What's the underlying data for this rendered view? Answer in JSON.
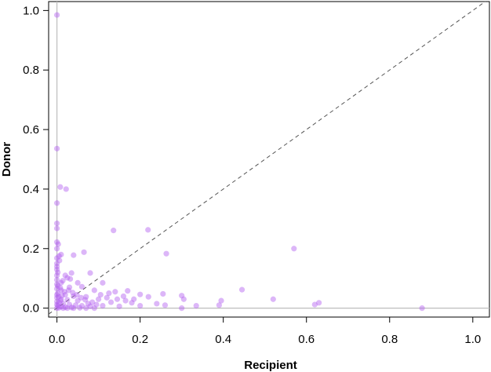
{
  "chart_data": {
    "type": "scatter",
    "title": "",
    "xlabel": "Recipient",
    "ylabel": "Donor",
    "xlim": [
      -0.02,
      1.04
    ],
    "ylim": [
      -0.03,
      1.03
    ],
    "x_ticks": [
      "0.0",
      "0.2",
      "0.4",
      "0.6",
      "0.8",
      "1.0"
    ],
    "y_ticks": [
      "0.0",
      "0.2",
      "0.4",
      "0.6",
      "0.8",
      "1.0"
    ],
    "grid": false,
    "legend": "none",
    "reference_lines": {
      "diagonal_dashed": "y = x",
      "vertical_x0": 0,
      "horizontal_y0": 0
    },
    "colors": {
      "point": "#b15ef0",
      "reference_line": "#bdbdbd",
      "diagonal": "#555555"
    },
    "points": [
      [
        0.0,
        0.985
      ],
      [
        0.0,
        0.536
      ],
      [
        0.008,
        0.407
      ],
      [
        0.022,
        0.4
      ],
      [
        0.0,
        0.353
      ],
      [
        0.0,
        0.285
      ],
      [
        0.0,
        0.268
      ],
      [
        0.136,
        0.261
      ],
      [
        0.219,
        0.263
      ],
      [
        0.0,
        0.222
      ],
      [
        0.003,
        0.215
      ],
      [
        0.0,
        0.2
      ],
      [
        0.57,
        0.2
      ],
      [
        0.263,
        0.183
      ],
      [
        0.01,
        0.18
      ],
      [
        0.005,
        0.175
      ],
      [
        0.0,
        0.168
      ],
      [
        0.065,
        0.188
      ],
      [
        0.04,
        0.178
      ],
      [
        0.0,
        0.15
      ],
      [
        0.0,
        0.13
      ],
      [
        0.002,
        0.12
      ],
      [
        0.0,
        0.11
      ],
      [
        0.025,
        0.102
      ],
      [
        0.032,
        0.098
      ],
      [
        0.08,
        0.118
      ],
      [
        0.035,
        0.118
      ],
      [
        0.0,
        0.095
      ],
      [
        0.01,
        0.085
      ],
      [
        0.05,
        0.085
      ],
      [
        0.11,
        0.085
      ],
      [
        0.002,
        0.075
      ],
      [
        0.0,
        0.065
      ],
      [
        0.03,
        0.07
      ],
      [
        0.06,
        0.072
      ],
      [
        0.01,
        0.06
      ],
      [
        0.09,
        0.06
      ],
      [
        0.14,
        0.055
      ],
      [
        0.17,
        0.058
      ],
      [
        0.2,
        0.046
      ],
      [
        0.445,
        0.062
      ],
      [
        0.3,
        0.042
      ],
      [
        0.255,
        0.048
      ],
      [
        0.22,
        0.038
      ],
      [
        0.16,
        0.04
      ],
      [
        0.12,
        0.035
      ],
      [
        0.002,
        0.05
      ],
      [
        0.02,
        0.045
      ],
      [
        0.04,
        0.04
      ],
      [
        0.07,
        0.038
      ],
      [
        0.1,
        0.03
      ],
      [
        0.0,
        0.035
      ],
      [
        0.01,
        0.03
      ],
      [
        0.025,
        0.028
      ],
      [
        0.05,
        0.025
      ],
      [
        0.085,
        0.02
      ],
      [
        0.13,
        0.02
      ],
      [
        0.18,
        0.018
      ],
      [
        0.24,
        0.015
      ],
      [
        0.305,
        0.03
      ],
      [
        0.395,
        0.025
      ],
      [
        0.52,
        0.03
      ],
      [
        0.63,
        0.018
      ],
      [
        0.62,
        0.012
      ],
      [
        0.0,
        0.022
      ],
      [
        0.005,
        0.018
      ],
      [
        0.015,
        0.015
      ],
      [
        0.03,
        0.012
      ],
      [
        0.045,
        0.01
      ],
      [
        0.06,
        0.008
      ],
      [
        0.08,
        0.006
      ],
      [
        0.11,
        0.008
      ],
      [
        0.15,
        0.006
      ],
      [
        0.2,
        0.008
      ],
      [
        0.26,
        0.01
      ],
      [
        0.335,
        0.008
      ],
      [
        0.39,
        0.01
      ],
      [
        0.3,
        0.0
      ],
      [
        0.002,
        0.008
      ],
      [
        0.01,
        0.005
      ],
      [
        0.02,
        0.003
      ],
      [
        0.035,
        0.002
      ],
      [
        0.0,
        0.0
      ],
      [
        0.005,
        0.001
      ],
      [
        0.015,
        0.0
      ],
      [
        0.025,
        0.0
      ],
      [
        0.04,
        0.0
      ],
      [
        0.055,
        0.001
      ],
      [
        0.07,
        0.0
      ],
      [
        0.09,
        0.0
      ],
      [
        0.878,
        0.0
      ],
      [
        0.0,
        0.012
      ],
      [
        0.012,
        0.042
      ],
      [
        0.018,
        0.055
      ],
      [
        0.008,
        0.068
      ],
      [
        0.0,
        0.08
      ],
      [
        0.014,
        0.092
      ],
      [
        0.02,
        0.11
      ],
      [
        0.0,
        0.14
      ],
      [
        0.006,
        0.16
      ],
      [
        0.028,
        0.06
      ],
      [
        0.038,
        0.052
      ],
      [
        0.048,
        0.045
      ],
      [
        0.058,
        0.035
      ],
      [
        0.068,
        0.028
      ],
      [
        0.075,
        0.015
      ],
      [
        0.095,
        0.012
      ],
      [
        0.105,
        0.045
      ],
      [
        0.125,
        0.05
      ],
      [
        0.145,
        0.03
      ],
      [
        0.165,
        0.025
      ],
      [
        0.185,
        0.03
      ],
      [
        0.0,
        0.045
      ],
      [
        0.004,
        0.038
      ],
      [
        0.009,
        0.025
      ]
    ]
  }
}
